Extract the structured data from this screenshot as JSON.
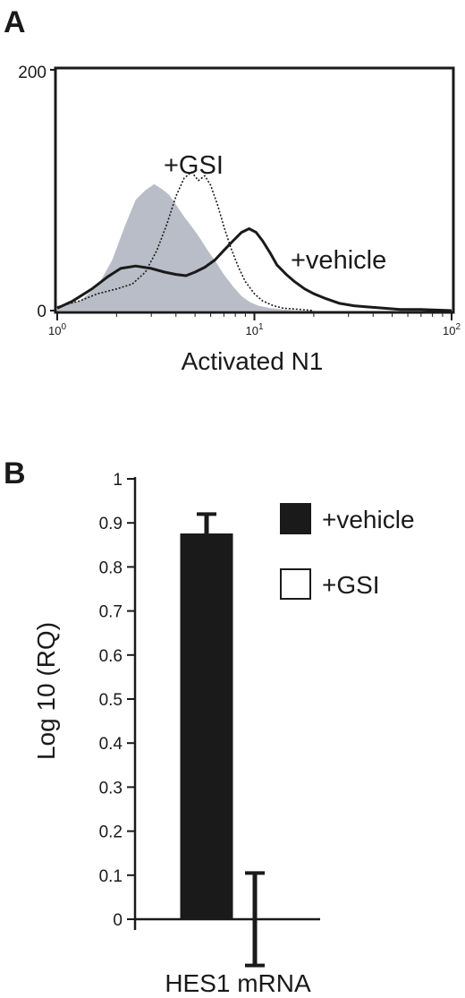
{
  "chart_data": [
    {
      "panel": "A",
      "type": "area",
      "xlabel": "Activated N1",
      "x_scale": "log",
      "xlim": [
        1,
        100
      ],
      "ylim": [
        0,
        200
      ],
      "x_ticks": [
        {
          "base": "10",
          "exp": "0"
        },
        {
          "base": "10",
          "exp": "1"
        },
        {
          "base": "10",
          "exp": "2"
        }
      ],
      "y_ticks": [
        "0",
        "200"
      ],
      "grid": false,
      "series": [
        {
          "name": "",
          "style": "filled-gray",
          "color": "#b9bdc7",
          "x": [
            1.0,
            1.3,
            1.6,
            1.9,
            2.2,
            2.5,
            2.8,
            3.1,
            3.4,
            3.7,
            4.0,
            4.4,
            4.8,
            5.3,
            5.8,
            6.4,
            7.0,
            7.8,
            8.6,
            9.5,
            10.5,
            12,
            14,
            17,
            20
          ],
          "y": [
            4,
            8,
            20,
            42,
            70,
            92,
            100,
            105,
            101,
            96,
            88,
            78,
            70,
            60,
            50,
            40,
            30,
            20,
            12,
            7,
            4,
            2,
            1,
            0,
            0
          ]
        },
        {
          "name": "+GSI",
          "style": "dotted",
          "color": "#1a1a1a",
          "x": [
            1.0,
            1.3,
            1.6,
            2.0,
            2.4,
            2.8,
            3.2,
            3.6,
            4.0,
            4.4,
            4.8,
            5.2,
            5.6,
            6.0,
            6.5,
            7.0,
            7.6,
            8.3,
            9.0,
            10,
            11,
            12.5,
            14,
            17,
            20
          ],
          "y": [
            3,
            8,
            14,
            18,
            22,
            32,
            50,
            72,
            95,
            110,
            115,
            108,
            112,
            104,
            88,
            70,
            52,
            36,
            24,
            14,
            8,
            4,
            2,
            1,
            0
          ]
        },
        {
          "name": "+vehicle",
          "style": "solid",
          "color": "#1a1a1a",
          "x": [
            1.0,
            1.2,
            1.5,
            1.8,
            2.1,
            2.5,
            3.0,
            3.5,
            4.0,
            4.5,
            5.0,
            5.6,
            6.3,
            7.0,
            7.8,
            8.6,
            9.4,
            10.2,
            11,
            12,
            13,
            14.5,
            16,
            18,
            20,
            23,
            27,
            32,
            38,
            45,
            55,
            70,
            100
          ],
          "y": [
            2,
            8,
            18,
            28,
            35,
            37,
            35,
            32,
            30,
            29,
            32,
            36,
            42,
            50,
            58,
            65,
            68,
            65,
            58,
            48,
            38,
            30,
            24,
            18,
            14,
            10,
            6,
            4,
            3,
            2,
            1,
            1,
            0
          ]
        }
      ]
    },
    {
      "panel": "B",
      "type": "bar",
      "categories": [
        "HES1 mRNA"
      ],
      "ylabel": "Log 10 (RQ)",
      "ylim": [
        0,
        1
      ],
      "y_ticks": [
        "0",
        "0.1",
        "0.2",
        "0.3",
        "0.4",
        "0.5",
        "0.6",
        "0.7",
        "0.8",
        "0.9",
        "1"
      ],
      "grid": false,
      "legend_position": "top-right",
      "series": [
        {
          "name": "+vehicle",
          "values": [
            0.875
          ],
          "error": [
            0.045
          ],
          "fill": "#1a1a1a"
        },
        {
          "name": "+GSI",
          "values": [
            0.0
          ],
          "error": [
            0.105
          ],
          "fill": "#ffffff"
        }
      ]
    }
  ],
  "panels": {
    "a": {
      "letter": "A",
      "annotations": {
        "gsi": "+GSI",
        "vehicle": "+vehicle"
      }
    },
    "b": {
      "letter": "B",
      "legend": [
        {
          "label": "+vehicle",
          "fill": "#1a1a1a"
        },
        {
          "label": "+GSI",
          "fill": "#ffffff"
        }
      ]
    }
  }
}
